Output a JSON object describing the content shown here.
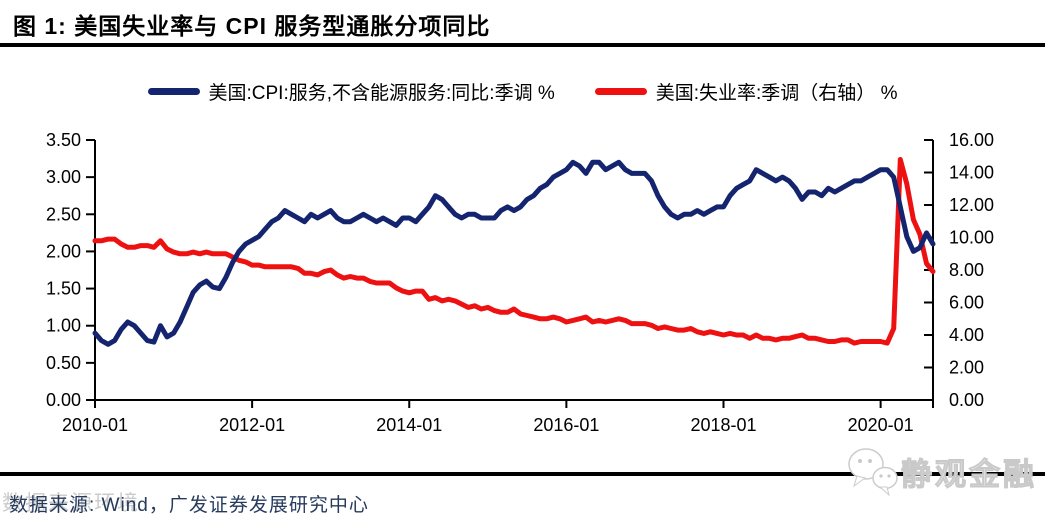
{
  "figure": {
    "title": "图 1:  美国失业率与 CPI 服务型通胀分项同比",
    "source_note": "数据来源: Wind，广发证券发展研究中心",
    "brand_watermark": "静观金融",
    "ghost_watermark": "数据来源环境"
  },
  "legend": [
    {
      "label": "美国:CPI:服务,不含能源服务:同比:季调 %",
      "color": "#14246e"
    },
    {
      "label": "美国:失业率:季调（右轴） %",
      "color": "#ee1111"
    }
  ],
  "colors": {
    "cpi_line": "#14246e",
    "unemployment_line": "#ee1111",
    "axis": "#000000",
    "source_text": "#263a5c"
  },
  "chart_data": {
    "type": "line",
    "title": "美国失业率与 CPI 服务型通胀分项同比",
    "x_domain": [
      "2010-01",
      "2020-09"
    ],
    "interval": "monthly",
    "x_tick_labels": [
      "2010-01",
      "2012-01",
      "2014-01",
      "2016-01",
      "2018-01",
      "2020-01"
    ],
    "x_tick_month_index": [
      0,
      24,
      48,
      72,
      96,
      120
    ],
    "left_axis": {
      "min": 0,
      "max": 3.5,
      "step": 0.5,
      "tick_labels": [
        "0.00",
        "0.50",
        "1.00",
        "1.50",
        "2.00",
        "2.50",
        "3.00",
        "3.50"
      ]
    },
    "right_axis": {
      "min": 0,
      "max": 16,
      "step": 2,
      "tick_labels": [
        "0.00",
        "2.00",
        "4.00",
        "6.00",
        "8.00",
        "10.00",
        "12.00",
        "14.00",
        "16.00"
      ]
    },
    "grid": false,
    "legend_position": "top",
    "series": [
      {
        "name": "美国:CPI:服务,不含能源服务:同比:季调 %",
        "axis": "left",
        "color": "#14246e",
        "values": [
          0.9,
          0.8,
          0.75,
          0.8,
          0.95,
          1.05,
          1.0,
          0.9,
          0.8,
          0.78,
          1.0,
          0.85,
          0.9,
          1.05,
          1.25,
          1.45,
          1.55,
          1.6,
          1.52,
          1.5,
          1.65,
          1.85,
          2.0,
          2.1,
          2.15,
          2.2,
          2.3,
          2.4,
          2.45,
          2.55,
          2.5,
          2.45,
          2.4,
          2.5,
          2.45,
          2.5,
          2.55,
          2.45,
          2.4,
          2.4,
          2.45,
          2.5,
          2.45,
          2.4,
          2.45,
          2.4,
          2.35,
          2.45,
          2.45,
          2.4,
          2.5,
          2.6,
          2.75,
          2.7,
          2.6,
          2.5,
          2.45,
          2.5,
          2.5,
          2.45,
          2.45,
          2.45,
          2.55,
          2.6,
          2.55,
          2.6,
          2.7,
          2.75,
          2.85,
          2.9,
          3.0,
          3.05,
          3.1,
          3.2,
          3.15,
          3.05,
          3.2,
          3.2,
          3.1,
          3.15,
          3.2,
          3.1,
          3.05,
          3.05,
          3.05,
          2.95,
          2.75,
          2.6,
          2.5,
          2.45,
          2.5,
          2.5,
          2.55,
          2.5,
          2.55,
          2.6,
          2.6,
          2.75,
          2.85,
          2.9,
          2.95,
          3.1,
          3.05,
          3.0,
          2.95,
          3.0,
          2.95,
          2.85,
          2.7,
          2.8,
          2.8,
          2.75,
          2.85,
          2.8,
          2.85,
          2.9,
          2.95,
          2.95,
          3.0,
          3.05,
          3.1,
          3.1,
          3.0,
          2.6,
          2.2,
          2.0,
          2.05,
          2.25,
          2.1
        ]
      },
      {
        "name": "美国:失业率:季调（右轴） %",
        "axis": "right",
        "color": "#ee1111",
        "values": [
          9.8,
          9.8,
          9.9,
          9.9,
          9.6,
          9.4,
          9.4,
          9.5,
          9.5,
          9.4,
          9.8,
          9.3,
          9.1,
          9.0,
          9.0,
          9.1,
          9.0,
          9.1,
          9.0,
          9.0,
          9.0,
          8.8,
          8.6,
          8.5,
          8.3,
          8.3,
          8.2,
          8.2,
          8.2,
          8.2,
          8.2,
          8.1,
          7.8,
          7.8,
          7.7,
          7.9,
          8.0,
          7.7,
          7.5,
          7.6,
          7.5,
          7.5,
          7.3,
          7.2,
          7.2,
          7.2,
          6.9,
          6.7,
          6.6,
          6.7,
          6.7,
          6.2,
          6.3,
          6.1,
          6.2,
          6.1,
          5.9,
          5.7,
          5.8,
          5.6,
          5.7,
          5.5,
          5.4,
          5.4,
          5.6,
          5.3,
          5.2,
          5.1,
          5.0,
          5.0,
          5.1,
          5.0,
          4.8,
          4.9,
          5.0,
          5.1,
          4.8,
          4.9,
          4.8,
          4.9,
          5.0,
          4.9,
          4.7,
          4.7,
          4.7,
          4.6,
          4.4,
          4.5,
          4.4,
          4.3,
          4.3,
          4.4,
          4.2,
          4.1,
          4.2,
          4.1,
          4.0,
          4.1,
          4.0,
          4.0,
          3.8,
          4.0,
          3.8,
          3.8,
          3.7,
          3.8,
          3.8,
          3.9,
          4.0,
          3.8,
          3.8,
          3.7,
          3.6,
          3.6,
          3.7,
          3.7,
          3.5,
          3.6,
          3.6,
          3.6,
          3.6,
          3.5,
          4.4,
          14.8,
          13.3,
          11.1,
          10.2,
          8.4,
          7.9
        ]
      }
    ]
  }
}
